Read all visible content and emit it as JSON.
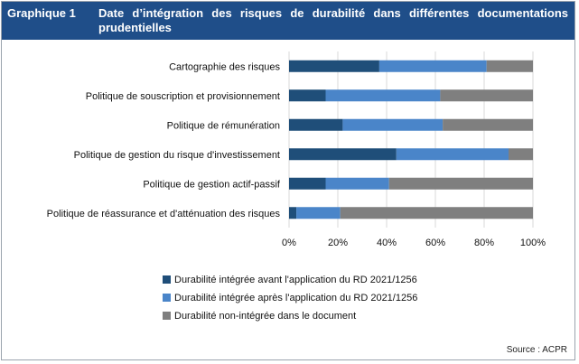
{
  "header": {
    "label": "Graphique 1",
    "title": "Date d’intégration des risques de durabilité dans différentes documentations prudentielles"
  },
  "source": "Source : ACPR",
  "colors": {
    "header_bg": "#1f4e89",
    "series": [
      "#1f4e79",
      "#4a85c9",
      "#7f7f7f"
    ]
  },
  "chart_data": {
    "type": "bar",
    "orientation": "horizontal",
    "stacked": true,
    "categories": [
      "Cartographie des risques",
      "Politique de souscription et provisionnement",
      "Politique de rémunération",
      "Politique de gestion du risque d'investissement",
      "Politique de gestion actif-passif",
      "Politique de réassurance et d'atténuation des risques"
    ],
    "series": [
      {
        "name": "Durabilité intégrée avant l'application du RD 2021/1256",
        "values": [
          37,
          15,
          22,
          44,
          15,
          3
        ]
      },
      {
        "name": "Durabilité intégrée après l'application du RD 2021/1256",
        "values": [
          44,
          47,
          41,
          46,
          26,
          18
        ]
      },
      {
        "name": "Durabilité non-intégrée dans le document",
        "values": [
          19,
          38,
          37,
          10,
          59,
          79
        ]
      }
    ],
    "xlim": [
      0,
      100
    ],
    "x_ticks": [
      "0%",
      "20%",
      "40%",
      "60%",
      "80%",
      "100%"
    ],
    "grid": true,
    "legend": "bottom-center"
  }
}
